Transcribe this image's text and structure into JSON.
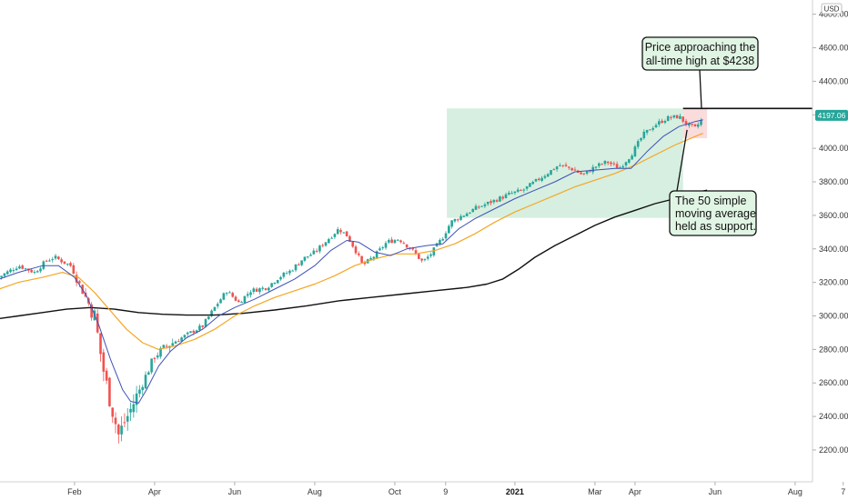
{
  "chart_data": {
    "type": "candlestick",
    "currency_label": "USD",
    "last_price_label": "4197.06",
    "y_ticks": [
      2200,
      2400,
      2600,
      2800,
      3000,
      3200,
      3400,
      3600,
      3800,
      4000,
      4200,
      4400,
      4600,
      4800
    ],
    "y_tick_labels": [
      "2200.00",
      "2400.00",
      "2600.00",
      "2800.00",
      "3000.00",
      "3200.00",
      "3400.00",
      "3600.00",
      "3800.00",
      "4000.00",
      "4200.00",
      "4400.00",
      "4600.00",
      "4800.00"
    ],
    "ylim": [
      2010,
      4885
    ],
    "x_tick_labels": [
      {
        "label": "Feb",
        "month": 2,
        "bold": false
      },
      {
        "label": "Apr",
        "month": 4,
        "bold": false
      },
      {
        "label": "Jun",
        "month": 6,
        "bold": false
      },
      {
        "label": "Aug",
        "month": 8,
        "bold": false
      },
      {
        "label": "Oct",
        "month": 10,
        "bold": false
      },
      {
        "label": "9",
        "month": 11.27,
        "bold": false
      },
      {
        "label": "2021",
        "month": 13,
        "bold": true
      },
      {
        "label": "Mar",
        "month": 15,
        "bold": false
      },
      {
        "label": "Apr",
        "month": 16,
        "bold": false
      },
      {
        "label": "Jun",
        "month": 18,
        "bold": false
      },
      {
        "label": "Aug",
        "month": 20,
        "bold": false
      },
      {
        "label": "7",
        "month": 21.2,
        "bold": false
      }
    ],
    "price_path": [
      [
        0.1,
        3230
      ],
      [
        0.6,
        3300
      ],
      [
        1.0,
        3260
      ],
      [
        1.3,
        3330
      ],
      [
        1.5,
        3350
      ],
      [
        1.9,
        3300
      ],
      [
        2.2,
        3150
      ],
      [
        2.5,
        3000
      ],
      [
        2.7,
        2700
      ],
      [
        2.9,
        2480
      ],
      [
        3.1,
        2290
      ],
      [
        3.4,
        2440
      ],
      [
        3.7,
        2600
      ],
      [
        4.0,
        2760
      ],
      [
        4.3,
        2820
      ],
      [
        4.6,
        2860
      ],
      [
        4.9,
        2900
      ],
      [
        5.2,
        2940
      ],
      [
        5.5,
        3050
      ],
      [
        5.8,
        3150
      ],
      [
        6.1,
        3080
      ],
      [
        6.4,
        3150
      ],
      [
        6.8,
        3170
      ],
      [
        7.1,
        3230
      ],
      [
        7.4,
        3270
      ],
      [
        7.7,
        3340
      ],
      [
        8.0,
        3380
      ],
      [
        8.3,
        3450
      ],
      [
        8.6,
        3520
      ],
      [
        8.8,
        3480
      ],
      [
        9.0,
        3400
      ],
      [
        9.2,
        3300
      ],
      [
        9.5,
        3360
      ],
      [
        9.8,
        3440
      ],
      [
        10.1,
        3460
      ],
      [
        10.4,
        3400
      ],
      [
        10.7,
        3320
      ],
      [
        10.9,
        3370
      ],
      [
        11.2,
        3470
      ],
      [
        11.4,
        3560
      ],
      [
        11.7,
        3600
      ],
      [
        12.0,
        3640
      ],
      [
        12.3,
        3670
      ],
      [
        12.6,
        3700
      ],
      [
        12.9,
        3730
      ],
      [
        13.2,
        3750
      ],
      [
        13.5,
        3800
      ],
      [
        13.8,
        3850
      ],
      [
        14.1,
        3900
      ],
      [
        14.4,
        3880
      ],
      [
        14.7,
        3840
      ],
      [
        15.0,
        3890
      ],
      [
        15.3,
        3920
      ],
      [
        15.6,
        3880
      ],
      [
        15.9,
        3960
      ],
      [
        16.2,
        4080
      ],
      [
        16.5,
        4140
      ],
      [
        16.8,
        4180
      ],
      [
        17.1,
        4190
      ],
      [
        17.3,
        4140
      ],
      [
        17.5,
        4120
      ],
      [
        17.7,
        4180
      ]
    ],
    "ma20": [
      [
        0.0,
        3210
      ],
      [
        0.6,
        3260
      ],
      [
        1.2,
        3300
      ],
      [
        1.6,
        3300
      ],
      [
        2.0,
        3230
      ],
      [
        2.3,
        3120
      ],
      [
        2.6,
        2950
      ],
      [
        2.9,
        2740
      ],
      [
        3.2,
        2560
      ],
      [
        3.4,
        2490
      ],
      [
        3.6,
        2480
      ],
      [
        3.8,
        2560
      ],
      [
        4.1,
        2700
      ],
      [
        4.4,
        2790
      ],
      [
        4.8,
        2870
      ],
      [
        5.2,
        2920
      ],
      [
        5.6,
        3000
      ],
      [
        6.0,
        3050
      ],
      [
        6.5,
        3100
      ],
      [
        7.0,
        3160
      ],
      [
        7.5,
        3220
      ],
      [
        8.0,
        3300
      ],
      [
        8.4,
        3390
      ],
      [
        8.8,
        3450
      ],
      [
        9.1,
        3440
      ],
      [
        9.5,
        3380
      ],
      [
        9.9,
        3360
      ],
      [
        10.3,
        3400
      ],
      [
        10.8,
        3420
      ],
      [
        11.2,
        3430
      ],
      [
        11.6,
        3520
      ],
      [
        12.0,
        3580
      ],
      [
        12.5,
        3640
      ],
      [
        13.0,
        3700
      ],
      [
        13.5,
        3750
      ],
      [
        14.0,
        3800
      ],
      [
        14.5,
        3860
      ],
      [
        15.0,
        3870
      ],
      [
        15.5,
        3880
      ],
      [
        15.9,
        3880
      ],
      [
        16.3,
        3980
      ],
      [
        16.7,
        4070
      ],
      [
        17.1,
        4130
      ],
      [
        17.5,
        4160
      ],
      [
        17.7,
        4170
      ]
    ],
    "ma50": [
      [
        0.0,
        3150
      ],
      [
        0.6,
        3200
      ],
      [
        1.2,
        3230
      ],
      [
        1.7,
        3260
      ],
      [
        2.1,
        3230
      ],
      [
        2.5,
        3140
      ],
      [
        2.9,
        3030
      ],
      [
        3.3,
        2920
      ],
      [
        3.7,
        2840
      ],
      [
        4.1,
        2800
      ],
      [
        4.5,
        2820
      ],
      [
        5.0,
        2860
      ],
      [
        5.5,
        2920
      ],
      [
        6.0,
        3000
      ],
      [
        6.5,
        3060
      ],
      [
        7.0,
        3110
      ],
      [
        7.5,
        3150
      ],
      [
        8.0,
        3190
      ],
      [
        8.5,
        3240
      ],
      [
        9.0,
        3300
      ],
      [
        9.5,
        3340
      ],
      [
        10.0,
        3370
      ],
      [
        10.5,
        3370
      ],
      [
        11.0,
        3390
      ],
      [
        11.5,
        3430
      ],
      [
        12.0,
        3490
      ],
      [
        12.5,
        3560
      ],
      [
        13.0,
        3620
      ],
      [
        13.5,
        3670
      ],
      [
        14.0,
        3720
      ],
      [
        14.5,
        3770
      ],
      [
        15.0,
        3810
      ],
      [
        15.5,
        3850
      ],
      [
        16.0,
        3900
      ],
      [
        16.5,
        3960
      ],
      [
        17.0,
        4020
      ],
      [
        17.5,
        4070
      ],
      [
        17.7,
        4090
      ]
    ],
    "ma200": [
      [
        0.0,
        2980
      ],
      [
        0.6,
        3000
      ],
      [
        1.2,
        3020
      ],
      [
        1.8,
        3040
      ],
      [
        2.4,
        3050
      ],
      [
        3.0,
        3040
      ],
      [
        3.6,
        3020
      ],
      [
        4.2,
        3010
      ],
      [
        4.8,
        3005
      ],
      [
        5.5,
        3005
      ],
      [
        6.2,
        3015
      ],
      [
        7.0,
        3035
      ],
      [
        7.8,
        3060
      ],
      [
        8.6,
        3090
      ],
      [
        9.4,
        3110
      ],
      [
        10.2,
        3130
      ],
      [
        11.0,
        3150
      ],
      [
        11.8,
        3170
      ],
      [
        12.3,
        3190
      ],
      [
        12.7,
        3220
      ],
      [
        13.1,
        3280
      ],
      [
        13.5,
        3350
      ],
      [
        14.0,
        3420
      ],
      [
        14.5,
        3480
      ],
      [
        15.0,
        3540
      ],
      [
        15.5,
        3590
      ],
      [
        16.0,
        3630
      ],
      [
        16.5,
        3670
      ],
      [
        17.0,
        3700
      ],
      [
        17.3,
        3720
      ],
      [
        17.6,
        3740
      ],
      [
        17.8,
        3750
      ]
    ],
    "rectangle_zone": {
      "x0": 11.3,
      "x1": 17.2,
      "y0": 3585,
      "y1": 4238
    },
    "recent_zone": {
      "x0": 17.2,
      "x1": 17.8,
      "y0": 4060,
      "y1": 4238
    },
    "all_time_high": 4238,
    "ath_line_start": 17.2,
    "annotations": [
      {
        "lines": [
          "Price approaching the",
          "all-time high at $4238"
        ]
      },
      {
        "lines": [
          "The 50 simple",
          "moving average",
          "held as support."
        ]
      }
    ],
    "colors": {
      "up": "#26a69a",
      "down": "#ef5350",
      "ma_fast": "#3f51b5",
      "ma_mid": "#f5a623",
      "ma_slow": "#111111",
      "zone_fill": "#c8ead6",
      "recent_fill": "#f9d6d6",
      "callout_fill": "#e1f5e4",
      "price_label_bg": "#26a69a"
    }
  }
}
